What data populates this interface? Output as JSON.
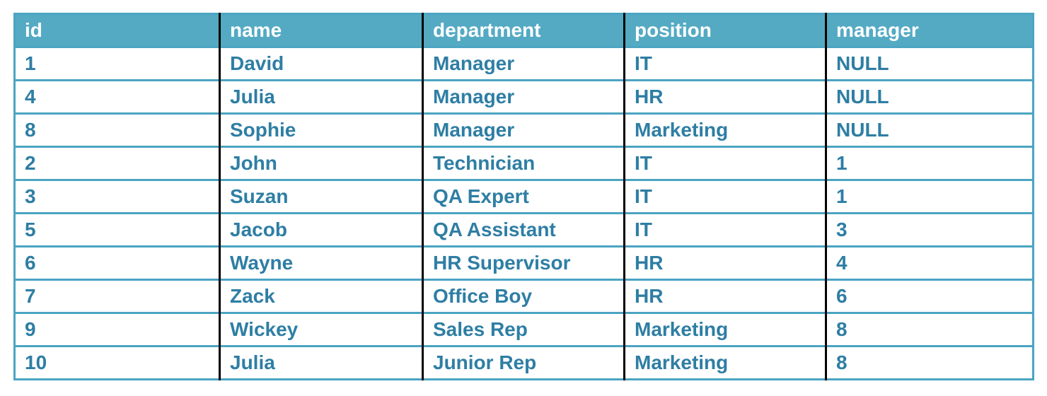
{
  "chart_data": {
    "type": "table",
    "title": "",
    "columns": [
      "id",
      "name",
      "department",
      "position",
      "manager"
    ],
    "rows": [
      [
        "1",
        "David",
        "Manager",
        "IT",
        "NULL"
      ],
      [
        "4",
        "Julia",
        "Manager",
        "HR",
        "NULL"
      ],
      [
        "8",
        "Sophie",
        "Manager",
        "Marketing",
        "NULL"
      ],
      [
        "2",
        "John",
        "Technician",
        "IT",
        "1"
      ],
      [
        "3",
        "Suzan",
        "QA Expert",
        "IT",
        "1"
      ],
      [
        "5",
        "Jacob",
        "QA Assistant",
        "IT",
        "3"
      ],
      [
        "6",
        "Wayne",
        "HR Supervisor",
        "HR",
        "4"
      ],
      [
        "7",
        "Zack",
        "Office Boy",
        "HR",
        "6"
      ],
      [
        "9",
        "Wickey",
        "Sales Rep",
        "Marketing",
        "8"
      ],
      [
        "10",
        "Julia",
        "Junior Rep",
        "Marketing",
        "8"
      ]
    ]
  },
  "colors": {
    "header_bg": "#54AAC3",
    "header_text": "#FFFFFF",
    "cell_text": "#2E7EA4",
    "grid_teal": "#4BA4C2",
    "col_divider": "#000000"
  }
}
